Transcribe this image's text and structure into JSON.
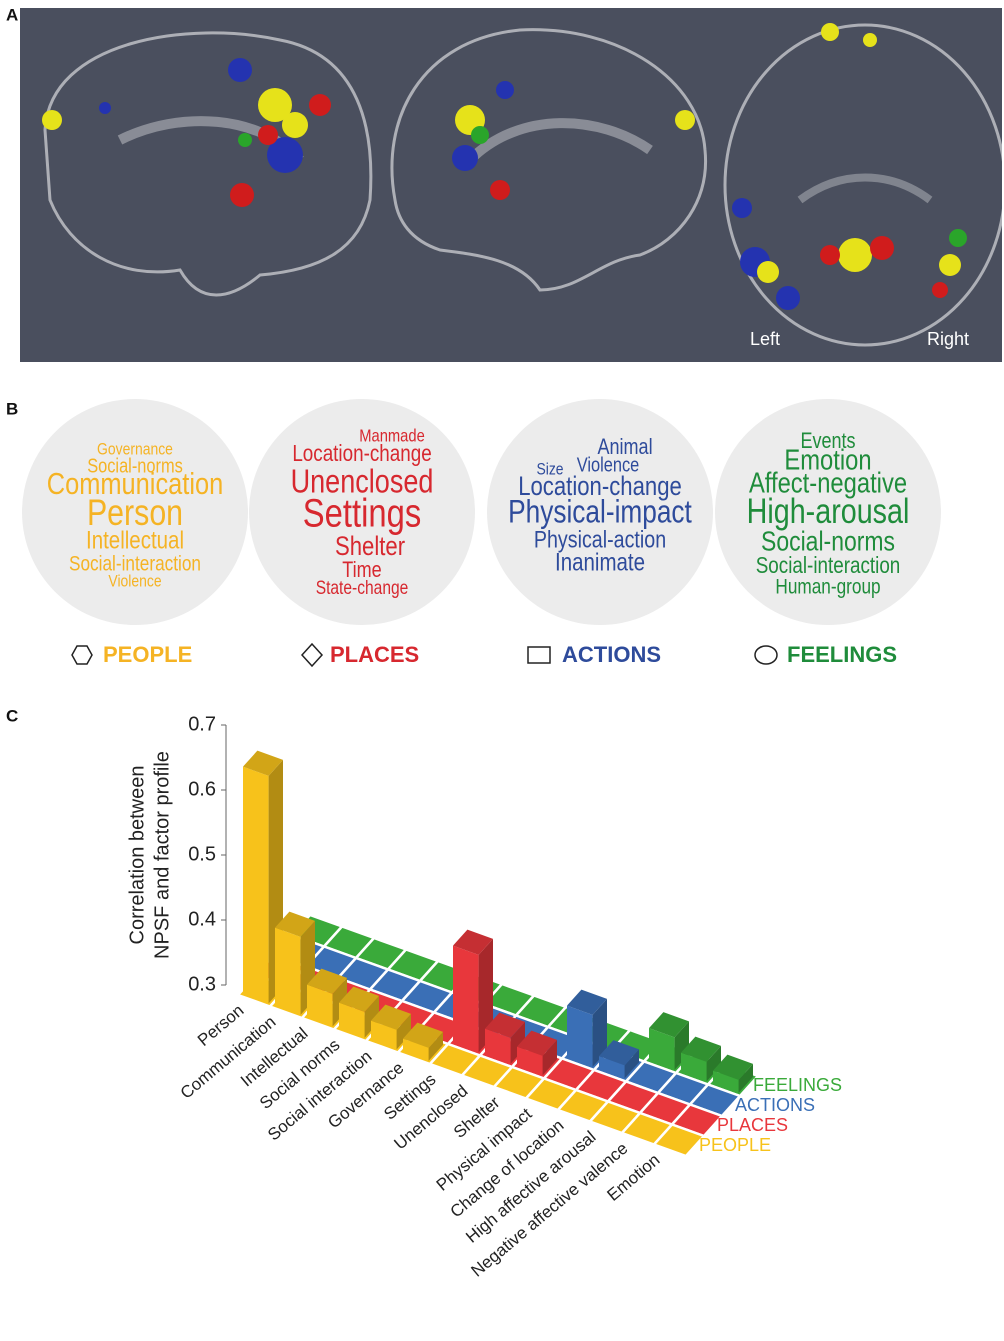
{
  "panel_a": {
    "label": "A",
    "left_label": "Left",
    "right_label": "Right"
  },
  "panel_b": {
    "label": "B",
    "clouds": [
      {
        "name": "PEOPLE",
        "color": "#f5b324",
        "words": [
          "Governance",
          "Social-norms",
          "Communication",
          "Person",
          "Intellectual",
          "Social-interaction",
          "Violence"
        ]
      },
      {
        "name": "PLACES",
        "color": "#d7282f",
        "words": [
          "Manmade",
          "Location-change",
          "Unenclosed",
          "Settings",
          "Shelter",
          "Time",
          "State-change"
        ]
      },
      {
        "name": "ACTIONS",
        "color": "#2e4b9b",
        "words": [
          "Animal",
          "Size",
          "Violence",
          "Location-change",
          "Physical-impact",
          "Physical-action",
          "Inanimate"
        ]
      },
      {
        "name": "FEELINGS",
        "color": "#1f8c3b",
        "words": [
          "Events",
          "Emotion",
          "Affect-negative",
          "High-arousal",
          "Social-norms",
          "Social-interaction",
          "Human-group"
        ]
      }
    ]
  },
  "chart_data": {
    "label": "C",
    "type": "bar3d",
    "y_label": [
      "Correlation between",
      "NPSF and factor profile"
    ],
    "ylim": [
      0.3,
      0.7
    ],
    "yticks": [
      0.3,
      0.4,
      0.5,
      0.6,
      0.7
    ],
    "categories": [
      "Person",
      "Communication",
      "Intellectual",
      "Social norms",
      "Social interaction",
      "Governance",
      "Settings",
      "Unenclosed",
      "Shelter",
      "Physical impact",
      "Change of location",
      "High affective arousal",
      "Negative affective valence",
      "Emotion"
    ],
    "series": [
      {
        "name": "PEOPLE",
        "color": "#f7c21b",
        "values": [
          0.65,
          0.42,
          0.35,
          0.34,
          0.33,
          0.32,
          null,
          null,
          null,
          null,
          null,
          null,
          null,
          null
        ]
      },
      {
        "name": "PLACES",
        "color": "#e8373c",
        "values": [
          null,
          null,
          null,
          null,
          null,
          null,
          0.45,
          0.34,
          0.33,
          null,
          null,
          null,
          null,
          null
        ]
      },
      {
        "name": "ACTIONS",
        "color": "#3a6fb6",
        "values": [
          null,
          null,
          null,
          null,
          null,
          null,
          null,
          null,
          null,
          0.38,
          0.32,
          null,
          null,
          null
        ]
      },
      {
        "name": "FEELINGS",
        "color": "#3aaa3a",
        "values": [
          null,
          null,
          null,
          null,
          null,
          null,
          null,
          null,
          null,
          null,
          null,
          0.35,
          0.33,
          0.32
        ]
      }
    ]
  }
}
